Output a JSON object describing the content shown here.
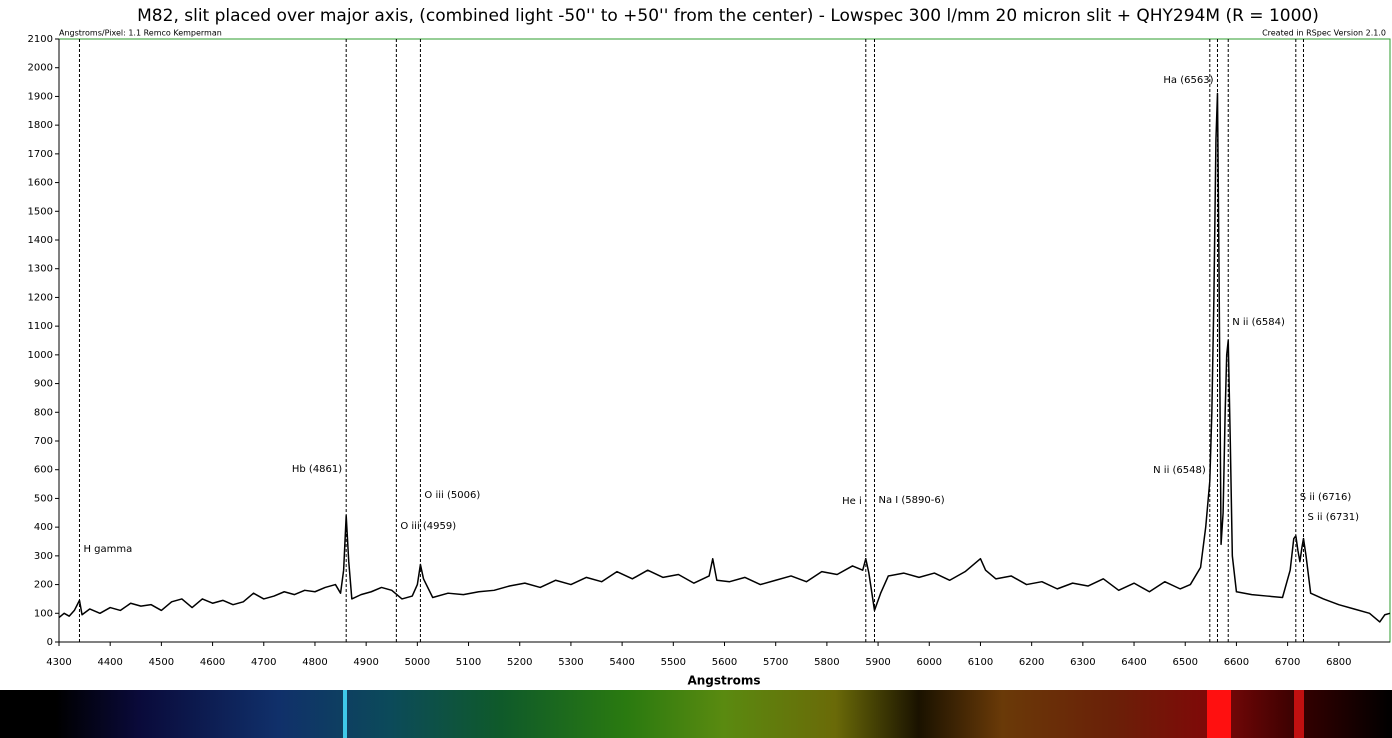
{
  "chart_data": {
    "type": "line",
    "title": "M82, slit placed over major axis, (combined light -50'' to +50'' from the center)  - Lowspec 300 l/mm 20 micron slit + QHY294M (R = 1000)",
    "annotations": [
      "Angstroms/Pixel: 1.1 Remco Kemperman",
      "Created in RSpec Version 2.1.0"
    ],
    "xlabel": "Angstroms",
    "xlim": [
      4300,
      6900
    ],
    "ylim": [
      0,
      2100
    ],
    "xticks": [
      4300,
      4400,
      4500,
      4600,
      4700,
      4800,
      4900,
      5000,
      5100,
      5200,
      5300,
      5400,
      5500,
      5600,
      5700,
      5800,
      5900,
      6000,
      6100,
      6200,
      6300,
      6400,
      6500,
      6600,
      6700,
      6800
    ],
    "yticks": [
      0,
      100,
      200,
      300,
      400,
      500,
      600,
      700,
      800,
      900,
      1000,
      1100,
      1200,
      1300,
      1400,
      1500,
      1600,
      1700,
      1800,
      1900,
      2000,
      2100
    ],
    "color": "#000000",
    "frame_color": "#2e9e2e",
    "lines": [
      {
        "label": "H gamma",
        "x": 4340
      },
      {
        "label": "Hb (4861)",
        "x": 4861
      },
      {
        "label": "O iii (4959)",
        "x": 4959
      },
      {
        "label": "O iii (5006)",
        "x": 5006
      },
      {
        "label": "He i",
        "x": 5876
      },
      {
        "label": "Na I (5890-6)",
        "x": 5893
      },
      {
        "label": "N ii (6548)",
        "x": 6548
      },
      {
        "label": "Ha (6563)",
        "x": 6563
      },
      {
        "label": "N ii (6584)",
        "x": 6584
      },
      {
        "label": "S ii (6716)",
        "x": 6716
      },
      {
        "label": "S ii (6731)",
        "x": 6731
      }
    ],
    "x": [
      4300,
      4310,
      4320,
      4330,
      4340,
      4345,
      4360,
      4380,
      4400,
      4420,
      4440,
      4460,
      4480,
      4500,
      4520,
      4540,
      4560,
      4580,
      4600,
      4620,
      4640,
      4660,
      4680,
      4700,
      4720,
      4740,
      4760,
      4780,
      4800,
      4820,
      4840,
      4850,
      4856,
      4861,
      4866,
      4872,
      4890,
      4910,
      4930,
      4950,
      4970,
      4990,
      5000,
      5006,
      5012,
      5030,
      5060,
      5090,
      5120,
      5150,
      5180,
      5210,
      5240,
      5270,
      5300,
      5330,
      5360,
      5390,
      5420,
      5450,
      5480,
      5510,
      5540,
      5570,
      5577,
      5585,
      5610,
      5640,
      5670,
      5700,
      5730,
      5760,
      5790,
      5820,
      5850,
      5870,
      5876,
      5882,
      5893,
      5905,
      5920,
      5950,
      5980,
      6010,
      6040,
      6070,
      6100,
      6110,
      6130,
      6160,
      6190,
      6220,
      6250,
      6280,
      6310,
      6340,
      6370,
      6400,
      6430,
      6460,
      6490,
      6510,
      6530,
      6540,
      6548,
      6552,
      6556,
      6560,
      6563,
      6566,
      6570,
      6574,
      6578,
      6581,
      6584,
      6588,
      6592,
      6600,
      6630,
      6660,
      6690,
      6705,
      6712,
      6716,
      6720,
      6724,
      6728,
      6731,
      6736,
      6745,
      6770,
      6800,
      6830,
      6860,
      6880,
      6890,
      6900
    ],
    "values": [
      85,
      100,
      90,
      110,
      145,
      95,
      115,
      100,
      120,
      110,
      135,
      125,
      130,
      110,
      140,
      150,
      120,
      150,
      135,
      145,
      130,
      140,
      170,
      150,
      160,
      175,
      165,
      180,
      175,
      190,
      200,
      170,
      250,
      440,
      280,
      150,
      165,
      175,
      190,
      180,
      150,
      160,
      200,
      270,
      220,
      155,
      170,
      165,
      175,
      180,
      195,
      205,
      190,
      215,
      200,
      225,
      210,
      245,
      220,
      250,
      225,
      235,
      205,
      230,
      290,
      215,
      210,
      225,
      200,
      215,
      230,
      210,
      245,
      235,
      265,
      250,
      290,
      240,
      110,
      170,
      230,
      240,
      225,
      240,
      215,
      245,
      290,
      250,
      220,
      230,
      200,
      210,
      185,
      205,
      195,
      220,
      180,
      205,
      175,
      210,
      185,
      200,
      260,
      400,
      560,
      800,
      1200,
      1750,
      1910,
      1300,
      340,
      450,
      800,
      1000,
      1050,
      700,
      300,
      175,
      165,
      160,
      155,
      250,
      360,
      370,
      320,
      280,
      330,
      360,
      300,
      170,
      150,
      130,
      115,
      100,
      70,
      95,
      100
    ]
  }
}
